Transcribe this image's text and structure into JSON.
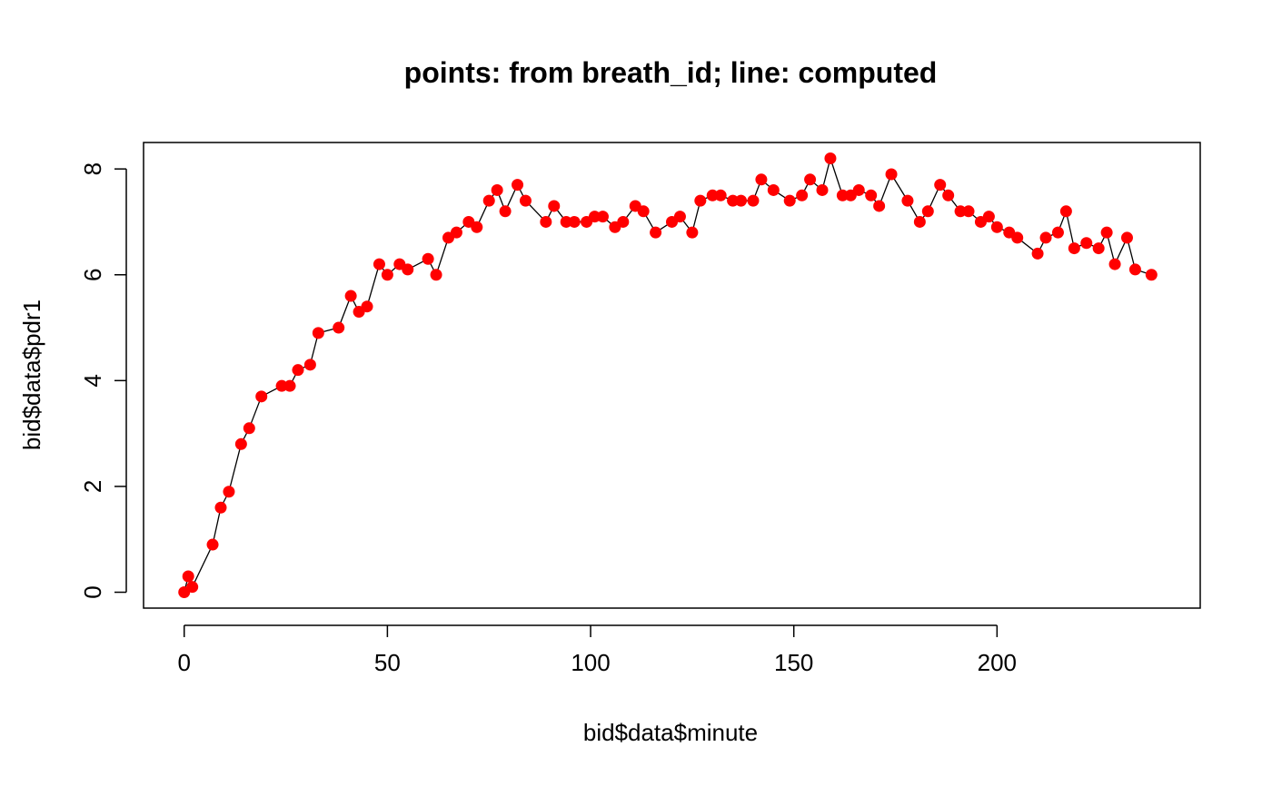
{
  "chart_data": {
    "type": "line",
    "title": "points: from breath_id; line: computed",
    "xlabel": "bid$data$minute",
    "ylabel": "bid$data$pdr1",
    "xlim": [
      -10,
      250
    ],
    "ylim": [
      -0.3,
      8.5
    ],
    "xticks": [
      0,
      50,
      100,
      150,
      200
    ],
    "yticks": [
      0,
      2,
      4,
      6,
      8
    ],
    "grid": false,
    "colors": {
      "points": "#ff0000",
      "line": "#000000",
      "axis": "#000000"
    },
    "series": [
      {
        "name": "points: from breath_id",
        "style": "points",
        "x": [
          0,
          1,
          2,
          7,
          9,
          11,
          14,
          16,
          19,
          24,
          26,
          28,
          31,
          33,
          38,
          41,
          43,
          45,
          48,
          50,
          53,
          55,
          60,
          62,
          65,
          67,
          70,
          72,
          75,
          77,
          79,
          82,
          84,
          89,
          91,
          94,
          96,
          99,
          101,
          103,
          106,
          108,
          111,
          113,
          116,
          120,
          122,
          125,
          127,
          130,
          132,
          135,
          137,
          140,
          142,
          145,
          149,
          152,
          154,
          157,
          159,
          162,
          164,
          166,
          169,
          171,
          174,
          178,
          181,
          183,
          186,
          188,
          191,
          193,
          196,
          198,
          200,
          203,
          205,
          210,
          212,
          215,
          217,
          219,
          222,
          225,
          227,
          229,
          232,
          234,
          238
        ],
        "y": [
          0,
          0.3,
          0.1,
          0.9,
          1.6,
          1.9,
          2.8,
          3.1,
          3.7,
          3.9,
          3.9,
          4.2,
          4.3,
          4.9,
          5.0,
          5.6,
          5.3,
          5.4,
          6.2,
          6.0,
          6.2,
          6.1,
          6.3,
          6.0,
          6.7,
          6.8,
          7.0,
          6.9,
          7.4,
          7.6,
          7.2,
          7.7,
          7.4,
          7.0,
          7.3,
          7.0,
          7.0,
          7.0,
          7.1,
          7.1,
          6.9,
          7.0,
          7.3,
          7.2,
          6.8,
          7.0,
          7.1,
          6.8,
          7.4,
          7.5,
          7.5,
          7.4,
          7.4,
          7.4,
          7.8,
          7.6,
          7.4,
          7.5,
          7.8,
          7.6,
          8.2,
          7.5,
          7.5,
          7.6,
          7.5,
          7.3,
          7.9,
          7.4,
          7.0,
          7.2,
          7.7,
          7.5,
          7.2,
          7.2,
          7.0,
          7.1,
          6.9,
          6.8,
          6.7,
          6.4,
          6.7,
          6.8,
          7.2,
          6.5,
          6.6,
          6.5,
          6.8,
          6.2,
          6.7,
          6.1,
          6.0
        ]
      },
      {
        "name": "line: computed",
        "style": "line",
        "x": [
          0,
          1,
          2,
          7,
          9,
          11,
          14,
          16,
          19,
          24,
          26,
          28,
          31,
          33,
          38,
          41,
          43,
          45,
          48,
          50,
          53,
          55,
          60,
          62,
          65,
          67,
          70,
          72,
          75,
          77,
          79,
          82,
          84,
          89,
          91,
          94,
          96,
          99,
          101,
          103,
          106,
          108,
          111,
          113,
          116,
          120,
          122,
          125,
          127,
          130,
          132,
          135,
          137,
          140,
          142,
          145,
          149,
          152,
          154,
          157,
          159,
          162,
          164,
          166,
          169,
          171,
          174,
          178,
          181,
          183,
          186,
          188,
          191,
          193,
          196,
          198,
          200,
          203,
          205,
          210,
          212,
          215,
          217,
          219,
          222,
          225,
          227,
          229,
          232,
          234,
          238
        ],
        "y": [
          0,
          0.3,
          0.1,
          0.9,
          1.6,
          1.9,
          2.8,
          3.1,
          3.7,
          3.9,
          3.9,
          4.2,
          4.3,
          4.9,
          5.0,
          5.6,
          5.3,
          5.4,
          6.2,
          6.0,
          6.2,
          6.1,
          6.3,
          6.0,
          6.7,
          6.8,
          7.0,
          6.9,
          7.4,
          7.6,
          7.2,
          7.7,
          7.4,
          7.0,
          7.3,
          7.0,
          7.0,
          7.0,
          7.1,
          7.1,
          6.9,
          7.0,
          7.3,
          7.2,
          6.8,
          7.0,
          7.1,
          6.8,
          7.4,
          7.5,
          7.5,
          7.4,
          7.4,
          7.4,
          7.8,
          7.6,
          7.4,
          7.5,
          7.8,
          7.6,
          8.2,
          7.5,
          7.5,
          7.6,
          7.5,
          7.3,
          7.9,
          7.4,
          7.0,
          7.2,
          7.7,
          7.5,
          7.2,
          7.2,
          7.0,
          7.1,
          6.9,
          6.8,
          6.7,
          6.4,
          6.7,
          6.8,
          7.2,
          6.5,
          6.6,
          6.5,
          6.8,
          6.2,
          6.7,
          6.1,
          6.0
        ]
      }
    ]
  }
}
